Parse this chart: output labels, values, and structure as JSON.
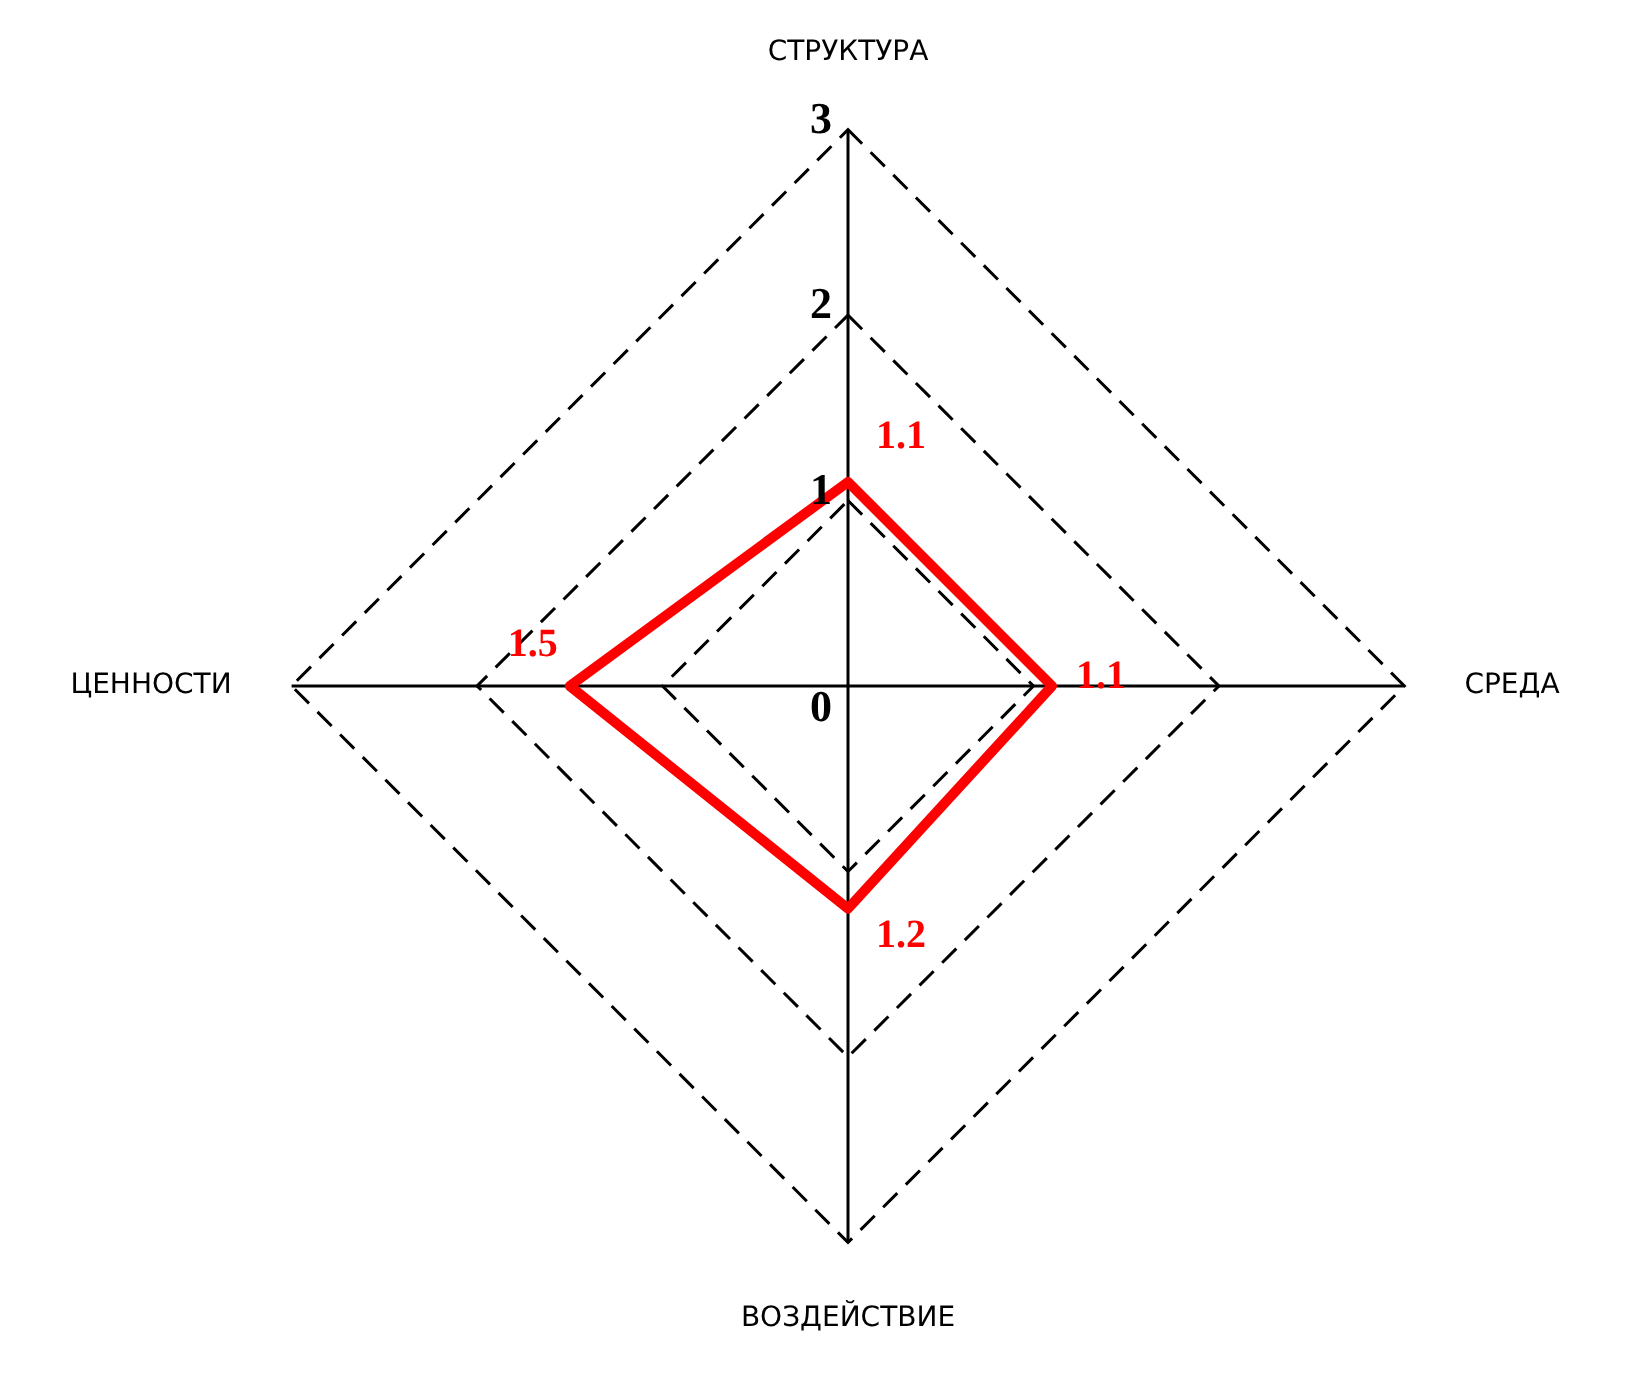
{
  "chart_data": {
    "type": "radar",
    "categories": [
      "СТРУКТУРА",
      "СРЕДА",
      "ВОЗДЕЙСТВИЕ",
      "ЦЕННОСТИ"
    ],
    "series": [
      {
        "color": "#ff0000",
        "values": [
          1.1,
          1.1,
          1.2,
          1.5
        ]
      }
    ],
    "ylim": [
      0,
      3
    ],
    "yticks": [
      0,
      1,
      2,
      3
    ],
    "grid": true,
    "data_labels": true,
    "legend": false,
    "marker": "none",
    "line_style": "solid"
  }
}
